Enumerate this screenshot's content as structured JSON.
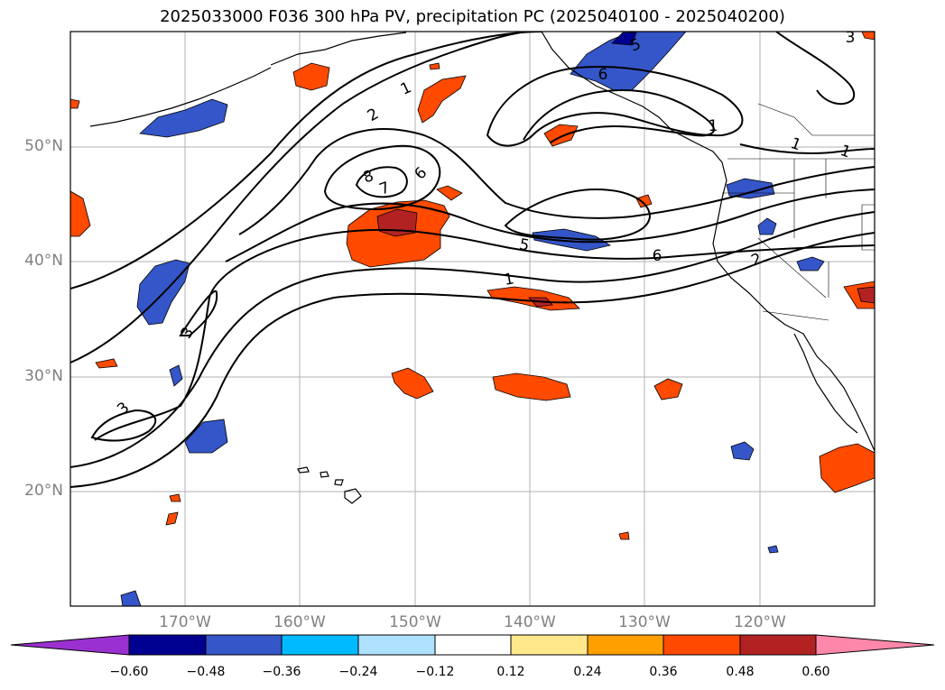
{
  "title": "2025033000 F036 300 hPa PV, precipitation PC (2025040100 - 2025040200)",
  "map": {
    "extent": {
      "lon_min": -180,
      "lon_max": -110,
      "lat_min": 10,
      "lat_max": 60
    },
    "lat_labels": [
      "50°N",
      "40°N",
      "30°N",
      "20°N"
    ],
    "lon_labels": [
      "170°W",
      "160°W",
      "150°W",
      "140°W",
      "130°W",
      "120°W"
    ],
    "contour_labels": [
      "1",
      "2",
      "3",
      "3",
      "5",
      "6",
      "7",
      "8",
      "6",
      "5",
      "6",
      "2",
      "1",
      "1",
      "1",
      "1",
      "3"
    ]
  },
  "colorbar": {
    "ticks": [
      "−0.60",
      "−0.48",
      "−0.36",
      "−0.24",
      "−0.12",
      "0.12",
      "0.24",
      "0.36",
      "0.48",
      "0.60"
    ],
    "colors": [
      "#9b30d0",
      "#000090",
      "#3456c8",
      "#00baff",
      "#aee0ff",
      "#ffffff",
      "#ffe88c",
      "#ffa000",
      "#ff4a00",
      "#b22222",
      "#ff88aa"
    ]
  }
}
